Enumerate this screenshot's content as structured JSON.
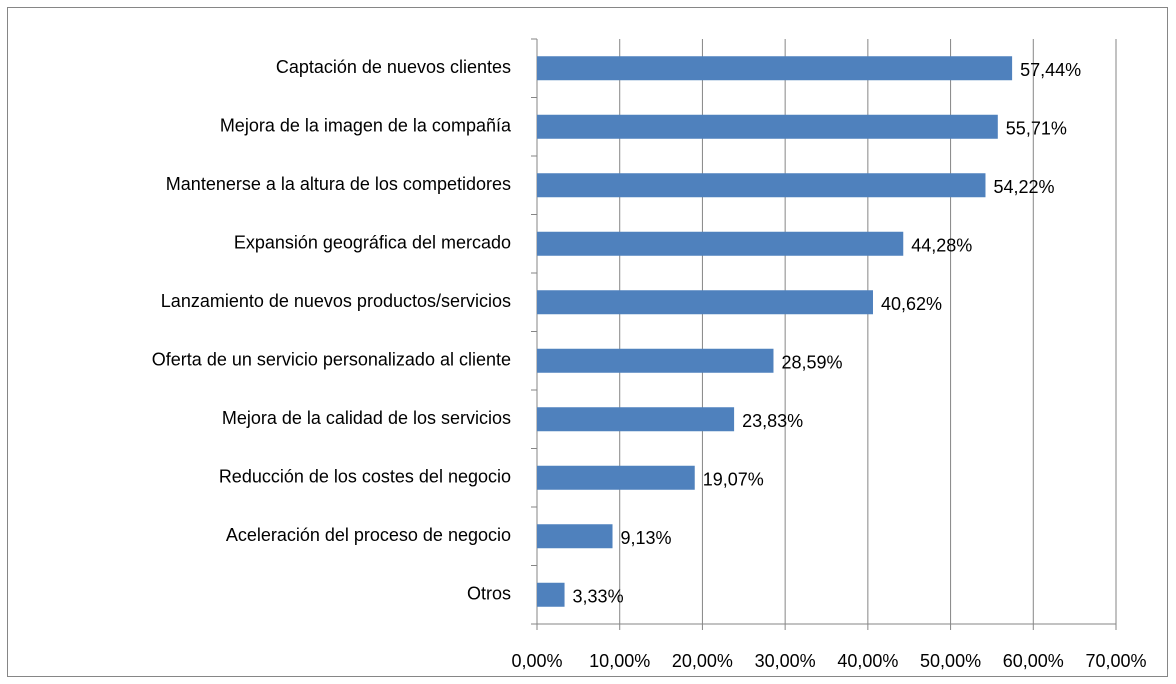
{
  "chart_data": {
    "type": "barh",
    "categories": [
      "Captación de nuevos clientes",
      "Mejora de la imagen de la compañía",
      "Mantenerse a la altura de los competidores",
      "Expansión geográfica del mercado",
      "Lanzamiento de nuevos productos/servicios",
      "Oferta de un servicio personalizado al cliente",
      "Mejora de la calidad de los servicios",
      "Reducción de los costes del negocio",
      "Aceleración del proceso de negocio",
      "Otros"
    ],
    "values": [
      57.44,
      55.71,
      54.22,
      44.28,
      40.62,
      28.59,
      23.83,
      19.07,
      9.13,
      3.33
    ],
    "value_labels": [
      "57,44%",
      "55,71%",
      "54,22%",
      "44,28%",
      "40,62%",
      "28,59%",
      "23,83%",
      "19,07%",
      "9,13%",
      "3,33%"
    ],
    "color": "#4f81bd",
    "xlim": [
      0,
      70
    ],
    "xticks": [
      {
        "value": 0,
        "label": "0,00%"
      },
      {
        "value": 10,
        "label": "10,00%"
      },
      {
        "value": 20,
        "label": "20,00%"
      },
      {
        "value": 30,
        "label": "30,00%"
      },
      {
        "value": 40,
        "label": "40,00%"
      },
      {
        "value": 50,
        "label": "50,00%"
      },
      {
        "value": 60,
        "label": "60,00%"
      },
      {
        "value": 70,
        "label": "70,00%"
      }
    ],
    "grid": true
  }
}
